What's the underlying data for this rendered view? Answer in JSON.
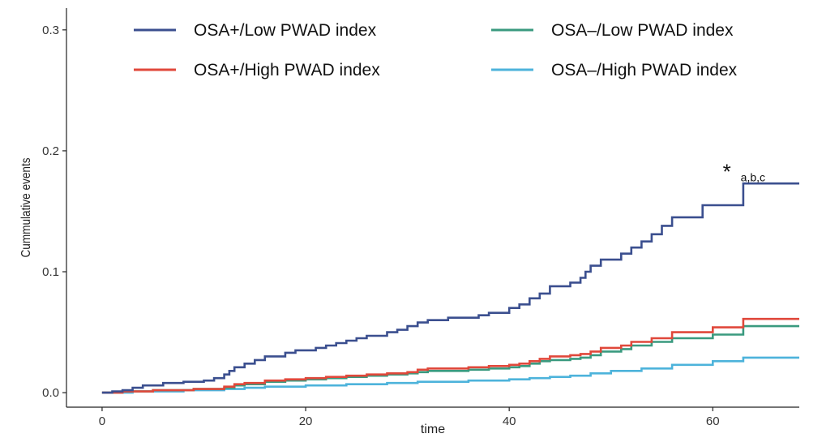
{
  "chart_data": {
    "type": "line",
    "step": true,
    "xlabel": "time",
    "ylabel": "Cummulative events",
    "xlim": [
      -3.5,
      68.5
    ],
    "ylim": [
      -0.012,
      0.318
    ],
    "xticks": [
      0,
      20,
      40,
      60
    ],
    "xtick_labels": [
      "0",
      "20",
      "40",
      "60"
    ],
    "yticks": [
      0.0,
      0.1,
      0.2,
      0.3
    ],
    "ytick_labels": [
      "0.0",
      "0.1",
      "0.2",
      "0.3"
    ],
    "grid": false,
    "legend_position": "top-right",
    "annotation": {
      "symbol": "*",
      "text": "a,b,c",
      "x": 62.5,
      "y": 0.185
    },
    "series": [
      {
        "name": "OSA+/Low PWAD index",
        "color": "#3b4f8f",
        "points": [
          [
            0,
            0
          ],
          [
            1,
            0.001
          ],
          [
            2,
            0.002
          ],
          [
            3,
            0.004
          ],
          [
            4,
            0.006
          ],
          [
            6,
            0.008
          ],
          [
            8,
            0.009
          ],
          [
            10,
            0.01
          ],
          [
            11,
            0.012
          ],
          [
            12,
            0.015
          ],
          [
            12.5,
            0.018
          ],
          [
            13,
            0.021
          ],
          [
            14,
            0.024
          ],
          [
            15,
            0.027
          ],
          [
            16,
            0.03
          ],
          [
            18,
            0.033
          ],
          [
            19,
            0.035
          ],
          [
            21,
            0.037
          ],
          [
            22,
            0.039
          ],
          [
            23,
            0.041
          ],
          [
            24,
            0.043
          ],
          [
            25,
            0.045
          ],
          [
            26,
            0.047
          ],
          [
            28,
            0.05
          ],
          [
            29,
            0.052
          ],
          [
            30,
            0.055
          ],
          [
            31,
            0.058
          ],
          [
            32,
            0.06
          ],
          [
            34,
            0.062
          ],
          [
            37,
            0.064
          ],
          [
            38,
            0.066
          ],
          [
            40,
            0.07
          ],
          [
            41,
            0.073
          ],
          [
            42,
            0.078
          ],
          [
            43,
            0.082
          ],
          [
            44,
            0.088
          ],
          [
            46,
            0.091
          ],
          [
            47,
            0.095
          ],
          [
            47.5,
            0.1
          ],
          [
            48,
            0.105
          ],
          [
            49,
            0.11
          ],
          [
            51,
            0.115
          ],
          [
            52,
            0.12
          ],
          [
            53,
            0.125
          ],
          [
            54,
            0.131
          ],
          [
            55,
            0.138
          ],
          [
            56,
            0.145
          ],
          [
            59,
            0.155
          ],
          [
            63,
            0.173
          ],
          [
            68.5,
            0.173
          ]
        ]
      },
      {
        "name": "OSA–/Low PWAD index",
        "color": "#3a9a7f",
        "points": [
          [
            0,
            0
          ],
          [
            2,
            0.001
          ],
          [
            5,
            0.002
          ],
          [
            9,
            0.003
          ],
          [
            12,
            0.004
          ],
          [
            13,
            0.006
          ],
          [
            14,
            0.007
          ],
          [
            16,
            0.009
          ],
          [
            18,
            0.01
          ],
          [
            20,
            0.011
          ],
          [
            22,
            0.012
          ],
          [
            24,
            0.013
          ],
          [
            26,
            0.014
          ],
          [
            28,
            0.015
          ],
          [
            30,
            0.016
          ],
          [
            31,
            0.017
          ],
          [
            32,
            0.018
          ],
          [
            34,
            0.018
          ],
          [
            36,
            0.019
          ],
          [
            38,
            0.02
          ],
          [
            40,
            0.021
          ],
          [
            41,
            0.022
          ],
          [
            42,
            0.024
          ],
          [
            43,
            0.026
          ],
          [
            44,
            0.027
          ],
          [
            46,
            0.028
          ],
          [
            47,
            0.029
          ],
          [
            48,
            0.031
          ],
          [
            49,
            0.034
          ],
          [
            51,
            0.036
          ],
          [
            52,
            0.039
          ],
          [
            54,
            0.042
          ],
          [
            56,
            0.045
          ],
          [
            60,
            0.048
          ],
          [
            63,
            0.055
          ],
          [
            68.5,
            0.055
          ]
        ]
      },
      {
        "name": "OSA+/High PWAD index",
        "color": "#e0483b",
        "points": [
          [
            0,
            0
          ],
          [
            2,
            0.001
          ],
          [
            5,
            0.002
          ],
          [
            9,
            0.003
          ],
          [
            12,
            0.005
          ],
          [
            13,
            0.007
          ],
          [
            14,
            0.008
          ],
          [
            16,
            0.01
          ],
          [
            18,
            0.011
          ],
          [
            20,
            0.012
          ],
          [
            22,
            0.013
          ],
          [
            24,
            0.014
          ],
          [
            26,
            0.015
          ],
          [
            28,
            0.016
          ],
          [
            30,
            0.017
          ],
          [
            31,
            0.019
          ],
          [
            32,
            0.02
          ],
          [
            34,
            0.02
          ],
          [
            36,
            0.021
          ],
          [
            38,
            0.022
          ],
          [
            40,
            0.023
          ],
          [
            41,
            0.024
          ],
          [
            42,
            0.026
          ],
          [
            43,
            0.028
          ],
          [
            44,
            0.03
          ],
          [
            46,
            0.031
          ],
          [
            47,
            0.032
          ],
          [
            48,
            0.034
          ],
          [
            49,
            0.037
          ],
          [
            51,
            0.039
          ],
          [
            52,
            0.042
          ],
          [
            54,
            0.045
          ],
          [
            56,
            0.05
          ],
          [
            60,
            0.054
          ],
          [
            63,
            0.061
          ],
          [
            68.5,
            0.061
          ]
        ]
      },
      {
        "name": "OSA–/High PWAD index",
        "color": "#4db3db",
        "points": [
          [
            0,
            0
          ],
          [
            3,
            0.001
          ],
          [
            8,
            0.002
          ],
          [
            12,
            0.003
          ],
          [
            14,
            0.004
          ],
          [
            16,
            0.005
          ],
          [
            18,
            0.005
          ],
          [
            20,
            0.006
          ],
          [
            24,
            0.007
          ],
          [
            28,
            0.008
          ],
          [
            31,
            0.009
          ],
          [
            36,
            0.01
          ],
          [
            40,
            0.011
          ],
          [
            42,
            0.012
          ],
          [
            44,
            0.013
          ],
          [
            46,
            0.014
          ],
          [
            48,
            0.016
          ],
          [
            50,
            0.018
          ],
          [
            53,
            0.02
          ],
          [
            56,
            0.023
          ],
          [
            60,
            0.026
          ],
          [
            63,
            0.029
          ],
          [
            68.5,
            0.029
          ]
        ]
      }
    ],
    "legend_layout": [
      [
        0,
        1
      ],
      [
        2,
        3
      ]
    ]
  }
}
